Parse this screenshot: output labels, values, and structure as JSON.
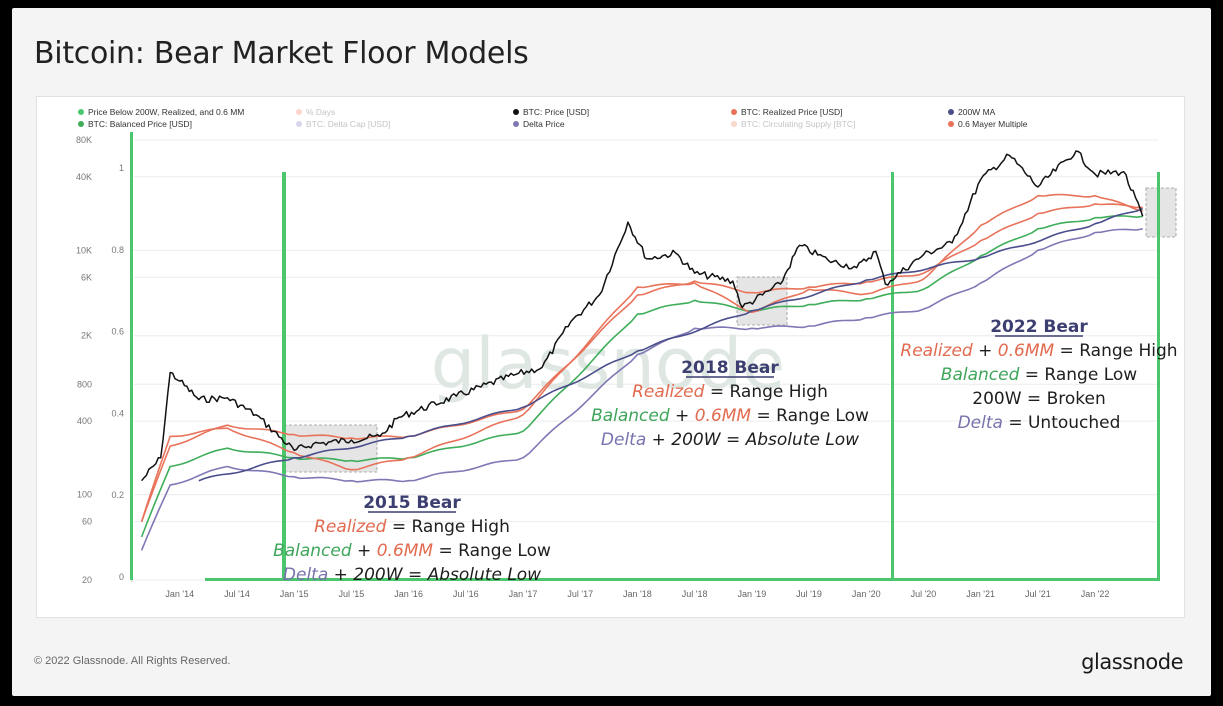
{
  "page": {
    "title": "Bitcoin: Bear Market Floor Models",
    "footer": "© 2022 Glassnode. All Rights Reserved.",
    "brand": "glassnode",
    "watermark": "glassnode"
  },
  "chart_data": {
    "type": "line",
    "title": "Bitcoin: Bear Market Floor Models",
    "y_scale": "log",
    "ylim": [
      20,
      80000
    ],
    "y_right_lim": [
      0,
      1
    ],
    "left_ticks": [
      "80K",
      "40K",
      "10K",
      "6K",
      "2K",
      "800",
      "400",
      "100",
      "60",
      "20"
    ],
    "right_ticks": [
      "1",
      "0.8",
      "0.6",
      "0.4",
      "0.2",
      "0"
    ],
    "x_ticks": [
      "Jan '14",
      "Jul '14",
      "Jan '15",
      "Jul '15",
      "Jan '16",
      "Jul '16",
      "Jan '17",
      "Jul '17",
      "Jan '18",
      "Jul '18",
      "Jan '19",
      "Jul '19",
      "Jan '20",
      "Jul '20",
      "Jan '21",
      "Jul '21",
      "Jan '22"
    ],
    "legend": [
      {
        "label": "Price Below 200W, Realized, and 0.6 MM",
        "color": "#4cc66c",
        "faded": false
      },
      {
        "label": "% Days",
        "color": "#f4a28a",
        "faded": true
      },
      {
        "label": "BTC: Price [USD]",
        "color": "#111111",
        "faded": false
      },
      {
        "label": "BTC: Realized Price [USD]",
        "color": "#e8735a",
        "faded": false
      },
      {
        "label": "200W MA",
        "color": "#4a4f8c",
        "faded": false
      },
      {
        "label": "BTC: Balanced Price [USD]",
        "color": "#3fae5a",
        "faded": false
      },
      {
        "label": "BTC: Delta Cap [USD]",
        "color": "#a7a3d2",
        "faded": true
      },
      {
        "label": "Delta Price",
        "color": "#7f78b5",
        "faded": false
      },
      {
        "label": "BTC: Circulating Supply [BTC]",
        "color": "#f0a890",
        "faded": true
      },
      {
        "label": "0.6 Mayer Multiple",
        "color": "#e8735a",
        "faded": false
      }
    ],
    "series": [
      {
        "name": "BTC: Price [USD]",
        "color": "#111111",
        "x": [
          "Sep '13",
          "Nov '13",
          "Dec '13",
          "Jan '14",
          "Mar '14",
          "Jun '14",
          "Sep '14",
          "Jan '15",
          "Mar '15",
          "Jul '15",
          "Oct '15",
          "Dec '15",
          "Jun '16",
          "Dec '16",
          "Mar '17",
          "Jun '17",
          "Sep '17",
          "Dec '17",
          "Feb '18",
          "May '18",
          "Jul '18",
          "Nov '18",
          "Dec '18",
          "Apr '19",
          "Jun '19",
          "Sep '19",
          "Dec '19",
          "Feb '20",
          "Mar '20",
          "Jul '20",
          "Oct '20",
          "Jan '21",
          "Apr '21",
          "Jul '21",
          "Nov '21",
          "Jan '22",
          "Apr '22",
          "Jun '22"
        ],
        "values": [
          130,
          200,
          1000,
          850,
          600,
          620,
          450,
          230,
          260,
          280,
          300,
          430,
          640,
          950,
          1100,
          2600,
          4300,
          17000,
          8500,
          9500,
          6500,
          5600,
          3400,
          5300,
          11000,
          8300,
          7200,
          9800,
          5300,
          9200,
          11500,
          38000,
          60000,
          33000,
          65000,
          42000,
          44000,
          19000
        ]
      },
      {
        "name": "BTC: Realized Price [USD]",
        "color": "#e8735a",
        "x": [
          "Sep '13",
          "Dec '13",
          "Jun '14",
          "Jan '15",
          "Jul '15",
          "Jan '16",
          "Jan '17",
          "Jan '18",
          "Jul '18",
          "Jan '19",
          "Jul '19",
          "Jan '20",
          "Jul '20",
          "Jan '21",
          "Jul '21",
          "Jan '22",
          "Jun '22"
        ],
        "values": [
          60,
          250,
          370,
          310,
          290,
          300,
          500,
          4300,
          5600,
          4500,
          5000,
          5500,
          6500,
          12000,
          20000,
          24000,
          22500
        ]
      },
      {
        "name": "0.6 Mayer Multiple",
        "color": "#e8735a",
        "x": [
          "Sep '13",
          "Dec '13",
          "Jun '14",
          "Jan '15",
          "Jul '15",
          "Jan '16",
          "Jan '17",
          "Jan '18",
          "Jul '18",
          "Jan '19",
          "Jul '19",
          "Jan '20",
          "Jul '20",
          "Jan '21",
          "Jul '21",
          "Jan '22",
          "Jun '22"
        ],
        "values": [
          60,
          300,
          350,
          220,
          160,
          200,
          450,
          5000,
          5400,
          3100,
          4800,
          4400,
          5800,
          16000,
          28000,
          28000,
          21000
        ]
      },
      {
        "name": "BTC: Balanced Price [USD]",
        "color": "#3fae5a",
        "x": [
          "Sep '13",
          "Dec '13",
          "Jun '14",
          "Jan '15",
          "Jul '15",
          "Jan '16",
          "Jan '17",
          "Jan '18",
          "Jul '18",
          "Jan '19",
          "Jul '19",
          "Jan '20",
          "Jul '20",
          "Jan '21",
          "Jul '21",
          "Jan '22",
          "Jun '22"
        ],
        "values": [
          45,
          170,
          240,
          200,
          190,
          200,
          330,
          3000,
          3900,
          3200,
          3600,
          4000,
          4800,
          9000,
          15000,
          18500,
          19000
        ]
      },
      {
        "name": "Delta Price",
        "color": "#7f78b5",
        "x": [
          "Sep '13",
          "Dec '13",
          "Jun '14",
          "Jan '15",
          "Jul '15",
          "Jan '16",
          "Jan '17",
          "Jan '18",
          "Jul '18",
          "Jan '19",
          "Jul '19",
          "Jan '20",
          "Jul '20",
          "Jan '21",
          "Jul '21",
          "Jan '22",
          "Jun '22"
        ],
        "values": [
          35,
          120,
          170,
          140,
          130,
          130,
          200,
          1400,
          2300,
          2300,
          2400,
          2800,
          3300,
          5400,
          10000,
          14000,
          15000
        ]
      },
      {
        "name": "200W MA",
        "color": "#4a4f8c",
        "x": [
          "Mar '14",
          "Jan '15",
          "Jan '16",
          "Jan '17",
          "Jan '18",
          "Jan '19",
          "Jan '20",
          "Jan '21",
          "Jan '22",
          "Jun '22"
        ],
        "values": [
          130,
          200,
          300,
          520,
          1500,
          3200,
          5700,
          8700,
          16500,
          22000
        ]
      }
    ],
    "annotations": [
      {
        "title": "2015 Bear",
        "lines": [
          [
            {
              "text": "Realized",
              "color": "red",
              "italic": true
            },
            {
              "text": " = Range High",
              "color": "dark",
              "italic": false
            }
          ],
          [
            {
              "text": "Balanced",
              "color": "green",
              "italic": true
            },
            {
              "text": " + ",
              "color": "dark",
              "italic": false
            },
            {
              "text": "0.6MM",
              "color": "red",
              "italic": true
            },
            {
              "text": " = Range Low",
              "color": "dark",
              "italic": false
            }
          ],
          [
            {
              "text": "Delta",
              "color": "purple",
              "italic": true
            },
            {
              "text": " + 200W = Absolute Low",
              "color": "dark",
              "italic": true
            }
          ]
        ]
      },
      {
        "title": "2018 Bear",
        "lines": [
          [
            {
              "text": "Realized",
              "color": "red",
              "italic": true
            },
            {
              "text": " = Range High",
              "color": "dark",
              "italic": false
            }
          ],
          [
            {
              "text": "Balanced",
              "color": "green",
              "italic": true
            },
            {
              "text": " + ",
              "color": "dark",
              "italic": false
            },
            {
              "text": "0.6MM",
              "color": "red",
              "italic": true
            },
            {
              "text": " = Range Low",
              "color": "dark",
              "italic": false
            }
          ],
          [
            {
              "text": "Delta",
              "color": "purple",
              "italic": true
            },
            {
              "text": " + 200W = Absolute Low",
              "color": "dark",
              "italic": true
            }
          ]
        ]
      },
      {
        "title": "2022 Bear",
        "lines": [
          [
            {
              "text": "Realized",
              "color": "red",
              "italic": true
            },
            {
              "text": " + ",
              "color": "dark",
              "italic": false
            },
            {
              "text": "0.6MM",
              "color": "red",
              "italic": true
            },
            {
              "text": " = Range High",
              "color": "dark",
              "italic": false
            }
          ],
          [
            {
              "text": "Balanced",
              "color": "green",
              "italic": true
            },
            {
              "text": " = Range Low",
              "color": "dark",
              "italic": false
            }
          ],
          [
            {
              "text": "200W = Broken",
              "color": "dark",
              "italic": false
            }
          ],
          [
            {
              "text": "Delta",
              "color": "purple",
              "italic": true
            },
            {
              "text": " = Untouched",
              "color": "dark",
              "italic": false
            }
          ]
        ]
      }
    ]
  }
}
